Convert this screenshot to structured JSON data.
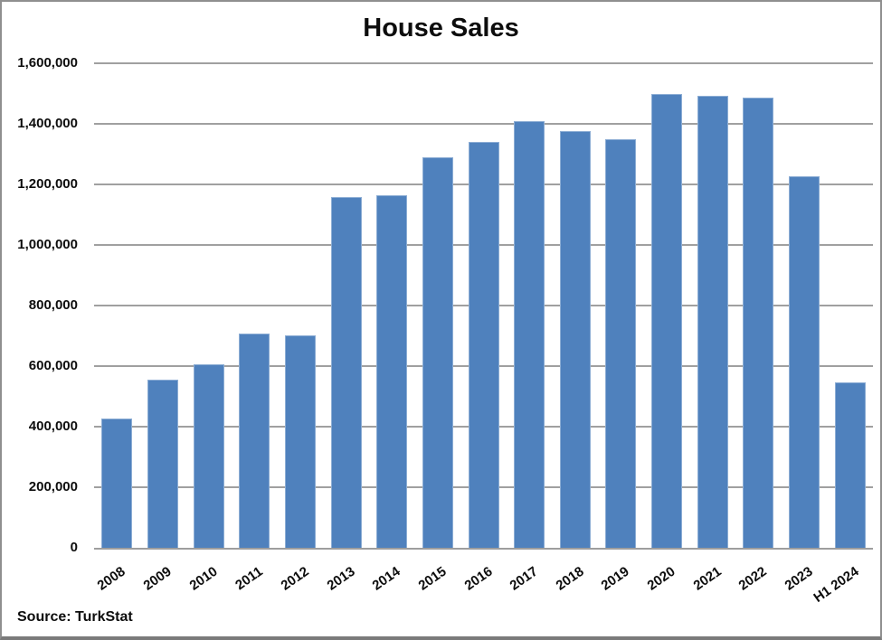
{
  "title": "House Sales",
  "source_note": "Source: TurkStat",
  "colors": {
    "bar_fill": "#4F81BD",
    "bar_border": "#7396C8",
    "gridline": "#A0A0A0",
    "axis_line": "#9E9E9E",
    "frame_border": "#8F8F8F",
    "text": "#0D0D0D",
    "background": "#FFFFFF"
  },
  "chart_data": {
    "type": "bar",
    "title": "House Sales",
    "categories": [
      "2008",
      "2009",
      "2010",
      "2011",
      "2012",
      "2013",
      "2014",
      "2015",
      "2016",
      "2017",
      "2018",
      "2019",
      "2020",
      "2021",
      "2022",
      "2023",
      "H1 2024"
    ],
    "values": [
      427000,
      555000,
      607000,
      708000,
      702000,
      1157000,
      1165000,
      1289000,
      1341000,
      1409000,
      1375000,
      1349000,
      1499000,
      1492000,
      1486000,
      1226000,
      546000
    ],
    "xlabel": "",
    "ylabel": "",
    "ylim": [
      0,
      1600000
    ],
    "yticks": [
      {
        "value": 0,
        "label": "0"
      },
      {
        "value": 200000,
        "label": "200,000"
      },
      {
        "value": 400000,
        "label": "400,000"
      },
      {
        "value": 600000,
        "label": "600,000"
      },
      {
        "value": 800000,
        "label": "800,000"
      },
      {
        "value": 1000000,
        "label": "1,000,000"
      },
      {
        "value": 1200000,
        "label": "1,200,000"
      },
      {
        "value": 1400000,
        "label": "1,400,000"
      },
      {
        "value": 1600000,
        "label": "1,600,000"
      }
    ],
    "grid": true,
    "legend": "none",
    "annotation": "Source: TurkStat"
  }
}
